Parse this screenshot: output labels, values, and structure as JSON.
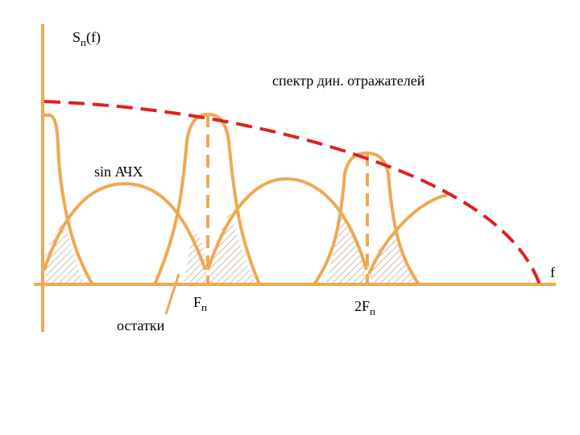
{
  "labels": {
    "y_axis_main": "S",
    "y_axis_sub": "п",
    "y_axis_arg": "(f)",
    "x_axis": "f",
    "dynamic_spectrum": "спектр дин. отражателей",
    "sin_response": "sin АЧХ",
    "residuals": "остатки",
    "fp_main": "F",
    "fp_sub": "п",
    "two_fp_main": "2F",
    "two_fp_sub": "п"
  },
  "colors": {
    "axis": "#F0A850",
    "curve": "#F0A850",
    "dashed": "#E02020",
    "hatch": "#B09070",
    "text": "#000000"
  }
}
